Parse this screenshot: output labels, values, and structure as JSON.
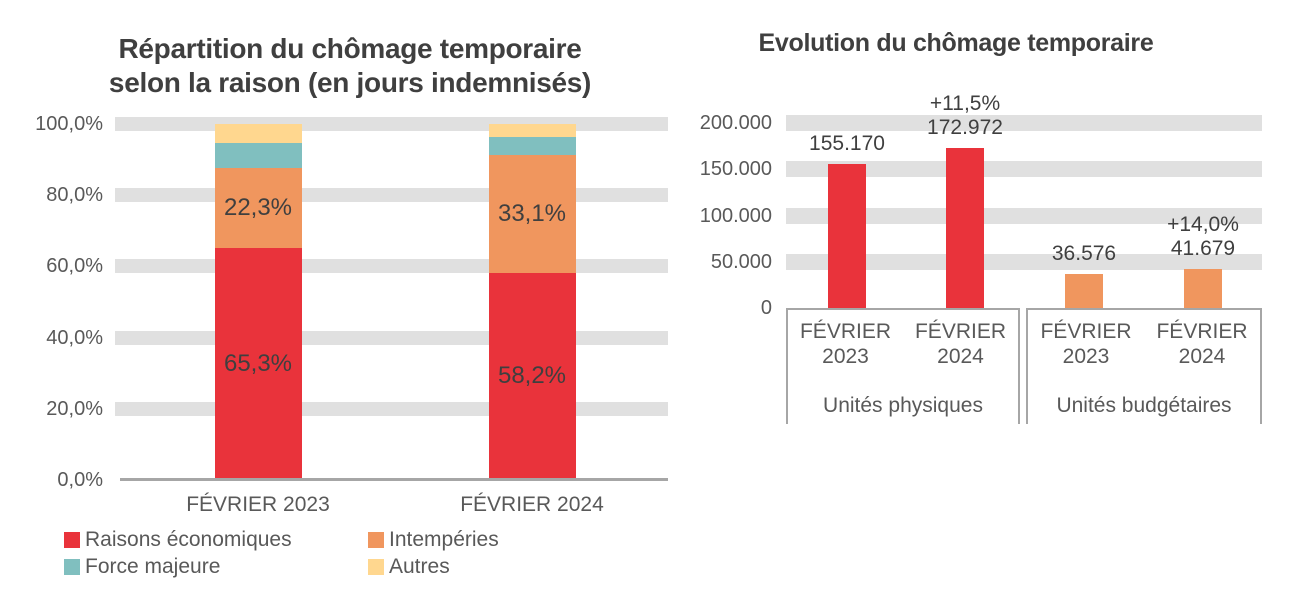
{
  "theme": {
    "background": "#FFFFFF",
    "band_color": "#E0E0E0",
    "axis_line_color": "#A6A6A6",
    "box_border_color": "#A6A6A6",
    "title_color": "#3F3F3F",
    "data_label_color": "#3F3F3F",
    "tick_color": "#595959",
    "red": "#E9333B",
    "orange": "#F0965E",
    "teal": "#80BFBF",
    "yellow": "#FFD78F"
  },
  "chart_data": [
    {
      "type": "bar",
      "subtype": "stacked-100-percent",
      "title": "Répartition du chômage temporaire selon la raison (en jours indemnisés)",
      "title_lines": [
        "Répartition du chômage temporaire",
        "selon la raison (en jours indemnisés)"
      ],
      "categories": [
        "FÉVRIER 2023",
        "FÉVRIER 2024"
      ],
      "series": [
        {
          "name": "Raisons économiques",
          "color": "#E9333B",
          "values": [
            65.3,
            58.2
          ],
          "data_labels": [
            "65,3%",
            "58,2%"
          ]
        },
        {
          "name": "Intempéries",
          "color": "#F0965E",
          "values": [
            22.3,
            33.1
          ],
          "data_labels": [
            "22,3%",
            "33,1%"
          ]
        },
        {
          "name": "Force majeure",
          "color": "#80BFBF",
          "values": [
            7.1,
            5.0
          ],
          "data_labels": [
            "",
            ""
          ]
        },
        {
          "name": "Autres",
          "color": "#FFD78F",
          "values": [
            5.3,
            3.7
          ],
          "data_labels": [
            "",
            ""
          ]
        }
      ],
      "y_ticks": [
        {
          "label": "100,0%",
          "value": 100
        },
        {
          "label": "80,0%",
          "value": 80
        },
        {
          "label": "60,0%",
          "value": 60
        },
        {
          "label": "40,0%",
          "value": 40
        },
        {
          "label": "20,0%",
          "value": 20
        },
        {
          "label": "0,0%",
          "value": 0
        }
      ],
      "ylim": [
        0,
        100
      ],
      "grid": "thick-horizontal-bands",
      "legend_position": "bottom-two-columns"
    },
    {
      "type": "bar",
      "subtype": "grouped-category-axis",
      "title": "Evolution du chômage temporaire",
      "groups": [
        {
          "label": "Unités physiques",
          "bars": [
            {
              "category_lines": [
                "FÉVRIER",
                "2023"
              ],
              "value": 155170,
              "value_label": "155.170",
              "pct_change_label": "",
              "color": "#E9333B"
            },
            {
              "category_lines": [
                "FÉVRIER",
                "2024"
              ],
              "value": 172972,
              "value_label": "172.972",
              "pct_change_label": "+11,5%",
              "color": "#E9333B"
            }
          ]
        },
        {
          "label": "Unités budgétaires",
          "bars": [
            {
              "category_lines": [
                "FÉVRIER",
                "2023"
              ],
              "value": 36576,
              "value_label": "36.576",
              "pct_change_label": "",
              "color": "#F0965E"
            },
            {
              "category_lines": [
                "FÉVRIER",
                "2024"
              ],
              "value": 41679,
              "value_label": "41.679",
              "pct_change_label": "+14,0%",
              "color": "#F0965E"
            }
          ]
        }
      ],
      "y_ticks": [
        {
          "label": "200.000",
          "value": 200000
        },
        {
          "label": "150.000",
          "value": 150000
        },
        {
          "label": "100.000",
          "value": 100000
        },
        {
          "label": "50.000",
          "value": 50000
        },
        {
          "label": "0",
          "value": 0
        }
      ],
      "ylim": [
        0,
        200000
      ],
      "grid": "thick-horizontal-bands",
      "legend_position": "none"
    }
  ]
}
